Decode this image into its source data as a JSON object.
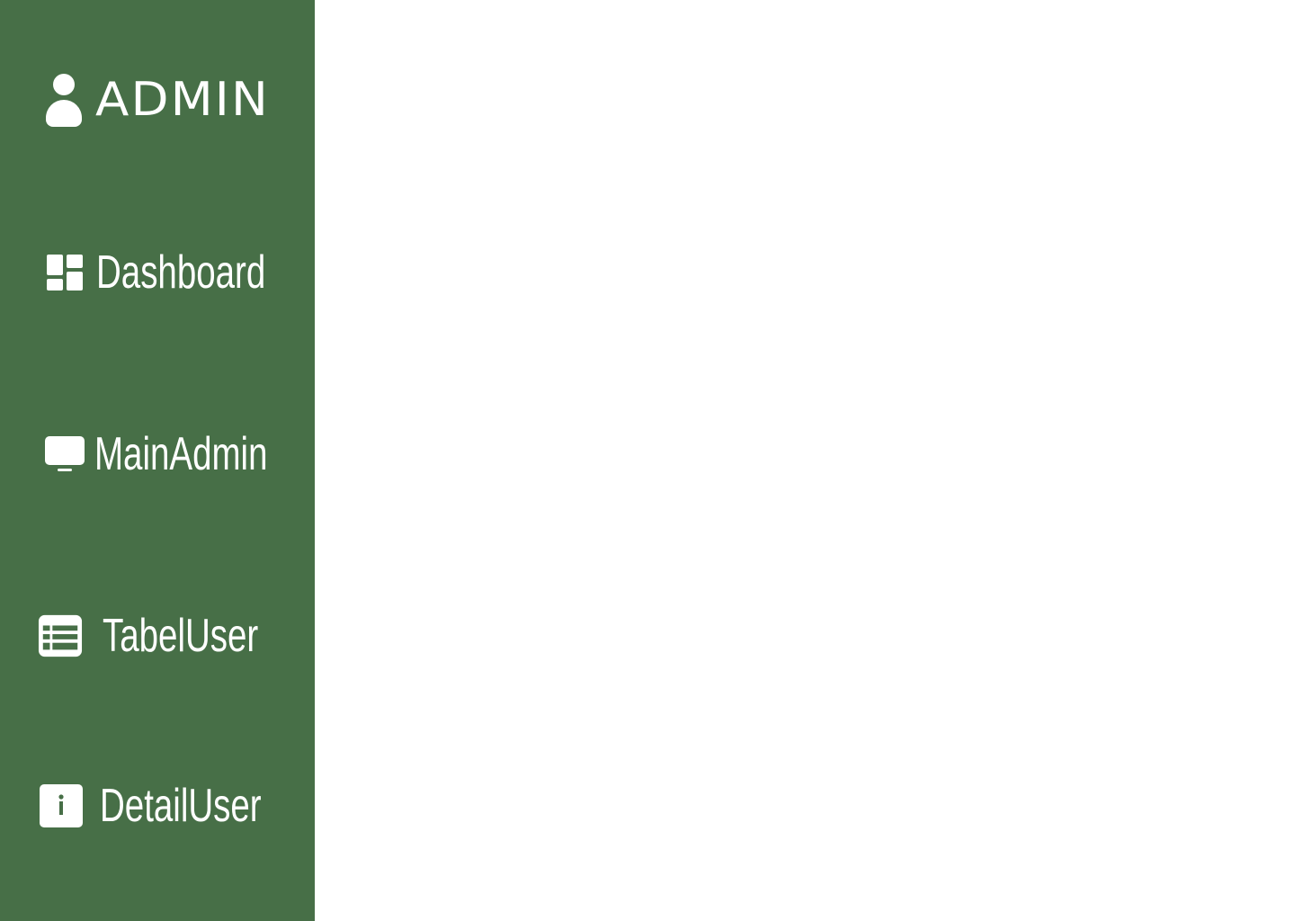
{
  "colors": {
    "sidebar_background": "#476f47",
    "sidebar_text": "#ffffff",
    "main_background": "#ffffff"
  },
  "sidebar": {
    "brand": {
      "icon": "user-icon",
      "label": "ADMIN"
    },
    "items": [
      {
        "icon": "dashboard-icon",
        "label": "Dashboard"
      },
      {
        "icon": "monitor-icon",
        "label": "MainAdmin"
      },
      {
        "icon": "table-icon",
        "label": "TabelUser"
      },
      {
        "icon": "info-icon",
        "label": "DetailUser"
      }
    ]
  }
}
